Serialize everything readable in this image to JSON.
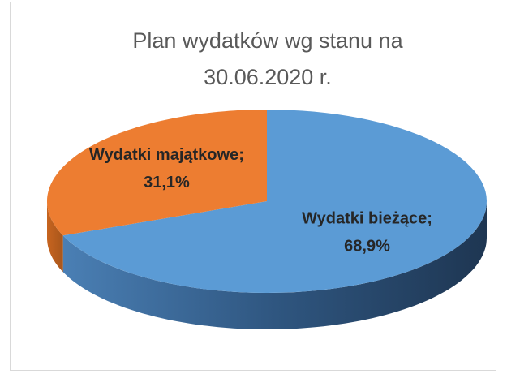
{
  "chart_data": {
    "type": "pie3d",
    "title": "Plan wydatków wg stanu na 30.06.2020 r.",
    "categories": [
      "Wydatki bieżące;",
      "Wydatki majątkowe;"
    ],
    "values": [
      68.9,
      31.1
    ],
    "value_labels": [
      "68,9%",
      "31,1%"
    ],
    "colors": [
      "#5b9bd5",
      "#ed7d31"
    ]
  }
}
